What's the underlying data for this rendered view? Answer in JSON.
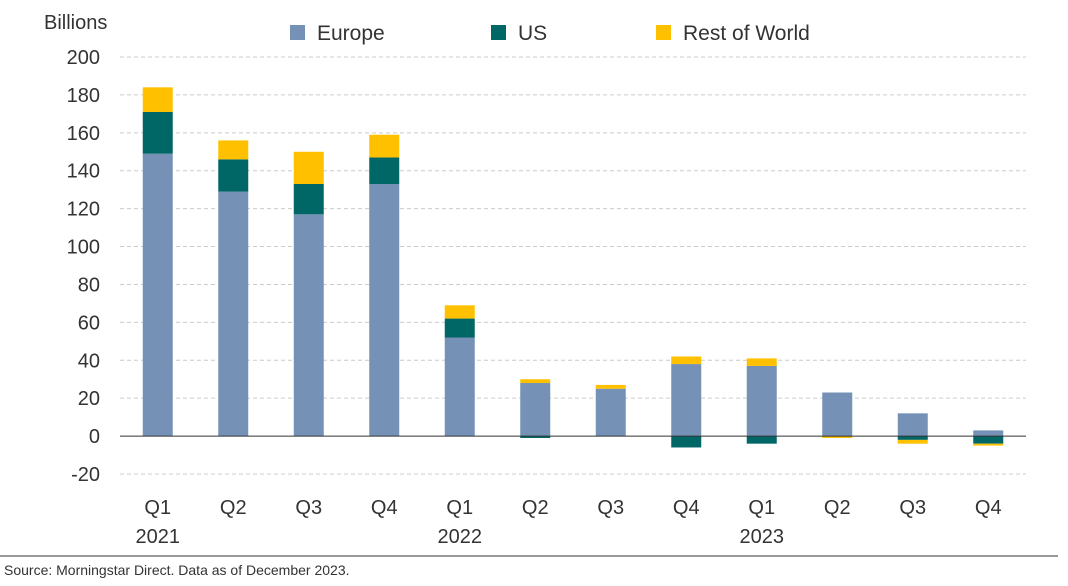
{
  "chart_data": {
    "type": "bar",
    "stacked": true,
    "ylabel": "Billions",
    "ylim": [
      -20,
      200
    ],
    "yticks": [
      -20,
      0,
      20,
      40,
      60,
      80,
      100,
      120,
      140,
      160,
      180,
      200
    ],
    "grid": "horizontal dashed",
    "legend_position": "top",
    "categories": [
      "Q1",
      "Q2",
      "Q3",
      "Q4",
      "Q1",
      "Q2",
      "Q3",
      "Q4",
      "Q1",
      "Q2",
      "Q3",
      "Q4"
    ],
    "year_labels": [
      {
        "label": "2021",
        "index": 0
      },
      {
        "label": "2022",
        "index": 4
      },
      {
        "label": "2023",
        "index": 8
      }
    ],
    "series": [
      {
        "name": "Europe",
        "color": "#7591b6",
        "values": [
          149,
          129,
          117,
          133,
          52,
          28,
          25,
          38,
          37,
          23,
          12,
          3
        ]
      },
      {
        "name": "US",
        "color": "#006666",
        "values": [
          22,
          17,
          16,
          14,
          10,
          -1,
          0,
          -6,
          -4,
          0,
          -2,
          -4
        ]
      },
      {
        "name": "Rest of World",
        "color": "#ffc000",
        "values": [
          13,
          10,
          17,
          12,
          7,
          2,
          2,
          4,
          4,
          -1,
          -2,
          -1
        ]
      }
    ]
  },
  "footer": {
    "source": "Source: Morningstar Direct. Data as of December 2023."
  }
}
